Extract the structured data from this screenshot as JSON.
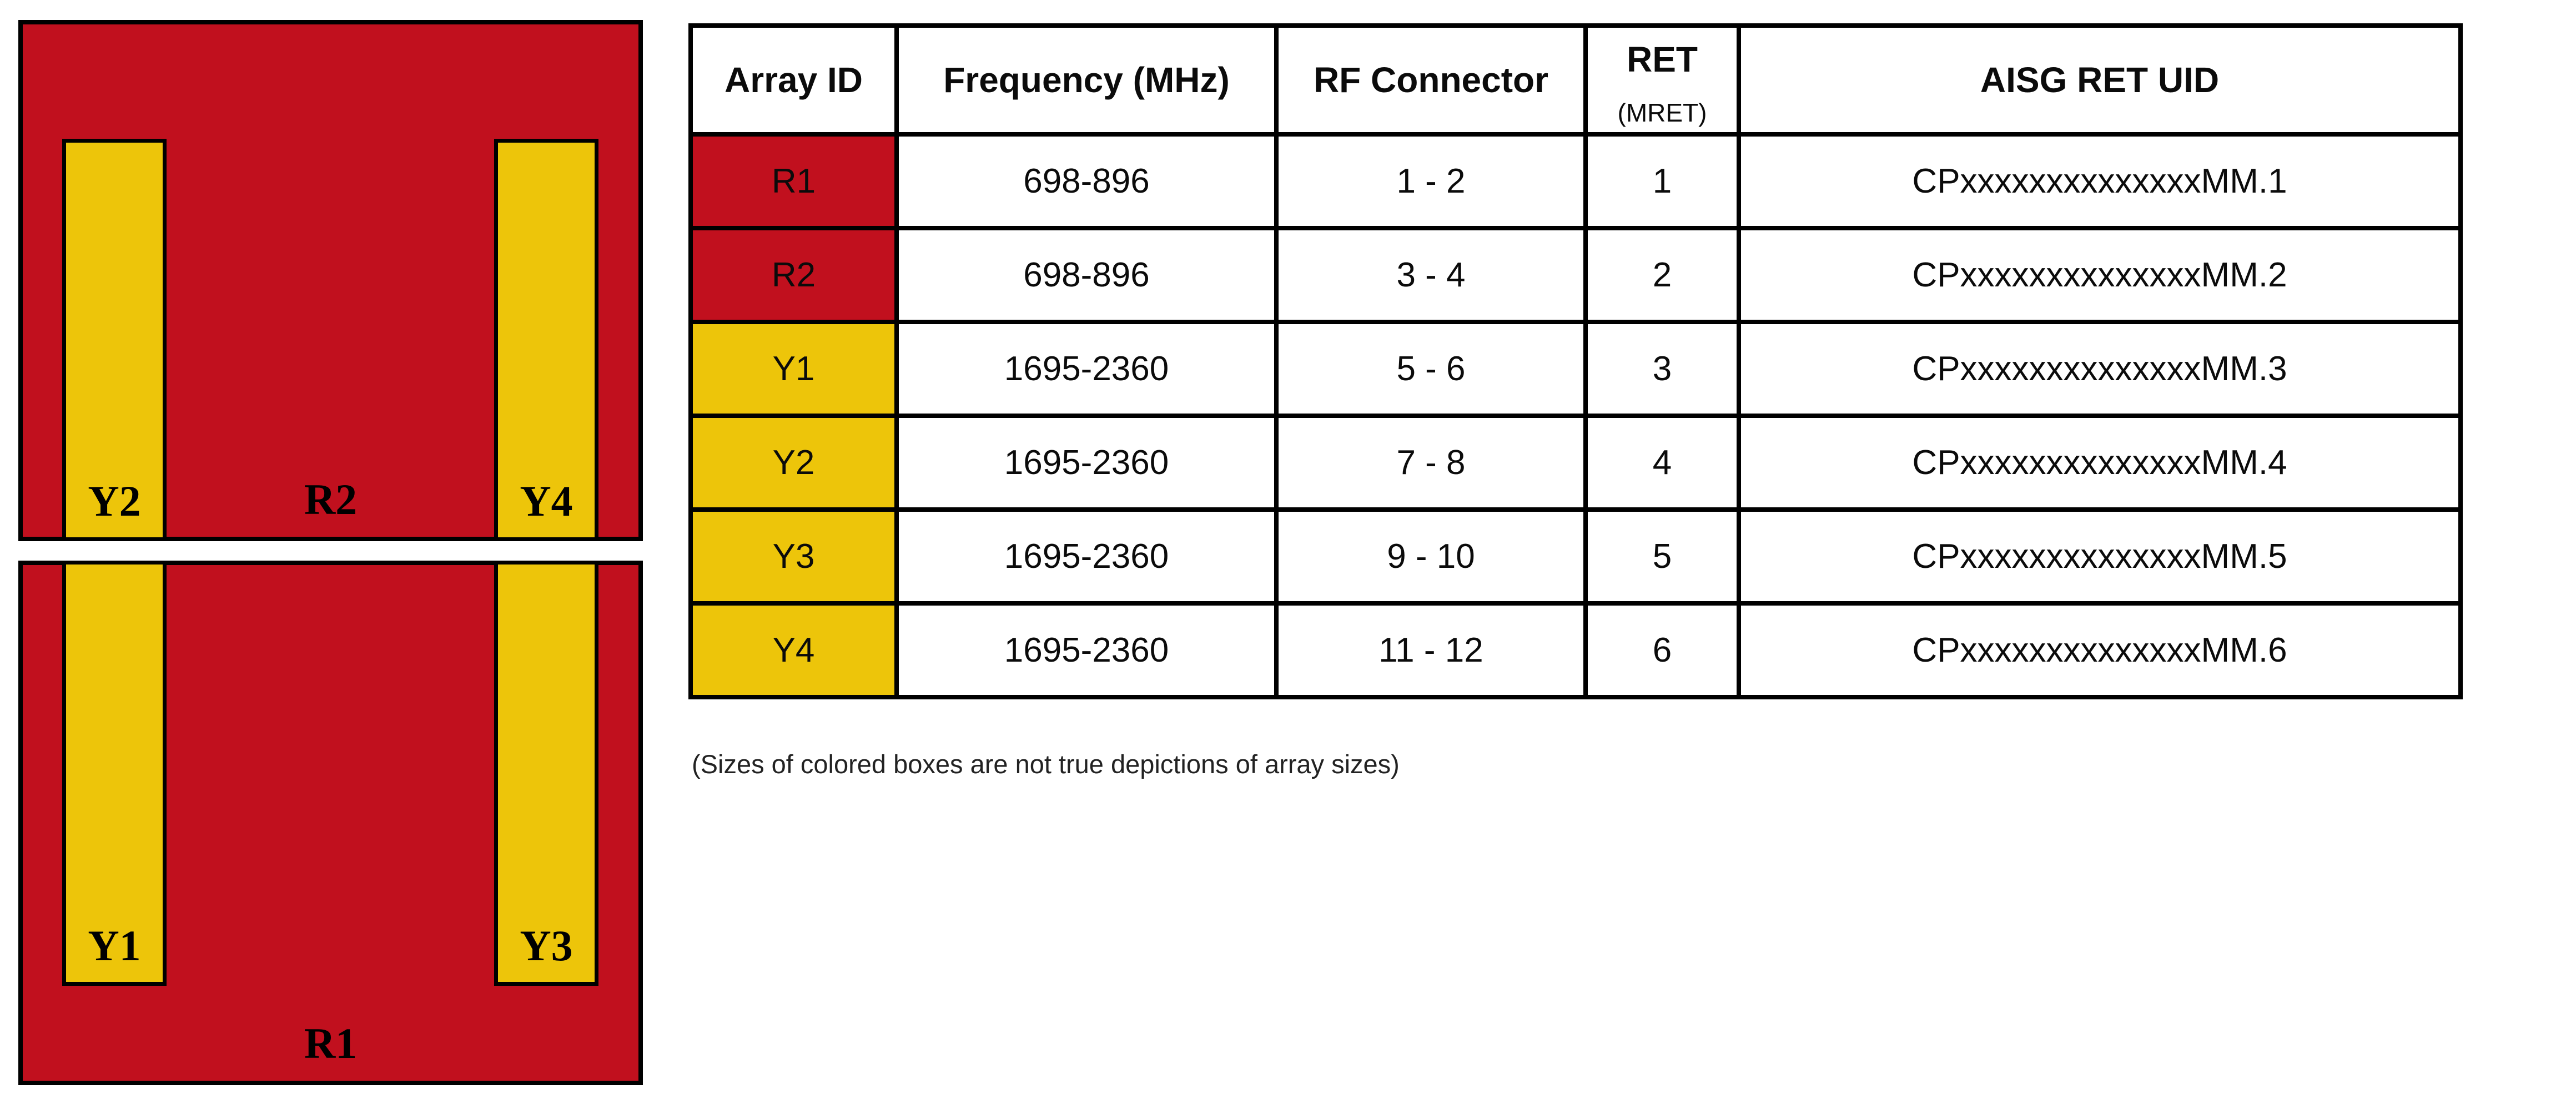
{
  "colors": {
    "red": "#C1101E",
    "yellow": "#EDC50A",
    "border": "#000000"
  },
  "diagram": {
    "top_box": {
      "region_label": "R2",
      "left_bar_label": "Y2",
      "right_bar_label": "Y4"
    },
    "bottom_box": {
      "region_label": "R1",
      "left_bar_label": "Y1",
      "right_bar_label": "Y3"
    }
  },
  "table": {
    "headers": {
      "array_id": "Array ID",
      "frequency": "Frequency (MHz)",
      "rf_connector": "RF Connector",
      "ret": "RET",
      "ret_sub": "(MRET)",
      "aisg_ret_uid": "AISG RET UID"
    },
    "rows": [
      {
        "array_id": "R1",
        "color": "#C1101E",
        "frequency": "698-896",
        "rf_connector": "1 - 2",
        "ret": "1",
        "aisg_ret_uid": "CPxxxxxxxxxxxxxxMM.1"
      },
      {
        "array_id": "R2",
        "color": "#C1101E",
        "frequency": "698-896",
        "rf_connector": "3 - 4",
        "ret": "2",
        "aisg_ret_uid": "CPxxxxxxxxxxxxxxMM.2"
      },
      {
        "array_id": "Y1",
        "color": "#EDC50A",
        "frequency": "1695-2360",
        "rf_connector": "5 - 6",
        "ret": "3",
        "aisg_ret_uid": "CPxxxxxxxxxxxxxxMM.3"
      },
      {
        "array_id": "Y2",
        "color": "#EDC50A",
        "frequency": "1695-2360",
        "rf_connector": "7 - 8",
        "ret": "4",
        "aisg_ret_uid": "CPxxxxxxxxxxxxxxMM.4"
      },
      {
        "array_id": "Y3",
        "color": "#EDC50A",
        "frequency": "1695-2360",
        "rf_connector": "9 - 10",
        "ret": "5",
        "aisg_ret_uid": "CPxxxxxxxxxxxxxxMM.5"
      },
      {
        "array_id": "Y4",
        "color": "#EDC50A",
        "frequency": "1695-2360",
        "rf_connector": "11 - 12",
        "ret": "6",
        "aisg_ret_uid": "CPxxxxxxxxxxxxxxMM.6"
      }
    ]
  },
  "note": "(Sizes of colored boxes are not true depictions of array sizes)"
}
